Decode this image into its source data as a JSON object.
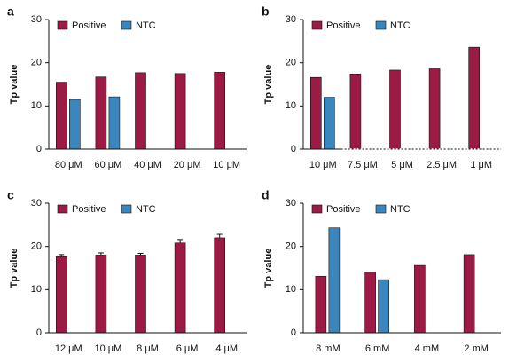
{
  "chart_data": [
    {
      "type": "bar",
      "panel": "a",
      "y_label": "Tp value",
      "categories": [
        "80 μM",
        "60 μM",
        "40 μM",
        "20 μM",
        "10 μM"
      ],
      "series": [
        {
          "name": "Positive",
          "color": "#9b1b45",
          "values": [
            15.5,
            16.7,
            17.7,
            17.5,
            17.8
          ]
        },
        {
          "name": "NTC",
          "color": "#3a87c0",
          "values": [
            11.5,
            12.1,
            null,
            null,
            null
          ]
        }
      ],
      "ylim": [
        0,
        30
      ],
      "yticks": [
        0,
        10,
        20,
        30
      ]
    },
    {
      "type": "bar",
      "panel": "b",
      "y_label": "Tp value",
      "categories": [
        "10 μM",
        "7.5 μM",
        "5 μM",
        "2.5 μM",
        "1 μM"
      ],
      "series": [
        {
          "name": "Positive",
          "color": "#9b1b45",
          "values": [
            16.6,
            17.4,
            18.3,
            18.6,
            23.6
          ]
        },
        {
          "name": "NTC",
          "color": "#3a87c0",
          "values": [
            12.0,
            null,
            null,
            null,
            null
          ]
        }
      ],
      "ylim": [
        0,
        30
      ],
      "yticks": [
        0,
        10,
        20,
        30
      ],
      "dotted_baseline": true
    },
    {
      "type": "bar",
      "panel": "c",
      "y_label": "Tp value",
      "categories": [
        "12 μM",
        "10 μM",
        "8 μM",
        "6 μM",
        "4 μM"
      ],
      "series": [
        {
          "name": "Positive",
          "color": "#9b1b45",
          "values": [
            17.6,
            18.0,
            18.0,
            20.8,
            22.0
          ],
          "errors": [
            0.5,
            0.5,
            0.4,
            0.8,
            0.8
          ]
        },
        {
          "name": "NTC",
          "color": "#3a87c0",
          "values": [
            null,
            null,
            null,
            null,
            null
          ]
        }
      ],
      "ylim": [
        0,
        30
      ],
      "yticks": [
        0,
        10,
        20,
        30
      ]
    },
    {
      "type": "bar",
      "panel": "d",
      "y_label": "Tp value",
      "categories": [
        "8 mM",
        "6 mM",
        "4 mM",
        "2 mM"
      ],
      "series": [
        {
          "name": "Positive",
          "color": "#9b1b45",
          "values": [
            13.1,
            14.1,
            15.6,
            18.1
          ]
        },
        {
          "name": "NTC",
          "color": "#3a87c0",
          "values": [
            24.3,
            12.3,
            null,
            null
          ]
        }
      ],
      "ylim": [
        0,
        30
      ],
      "yticks": [
        0,
        10,
        20,
        30
      ]
    }
  ]
}
